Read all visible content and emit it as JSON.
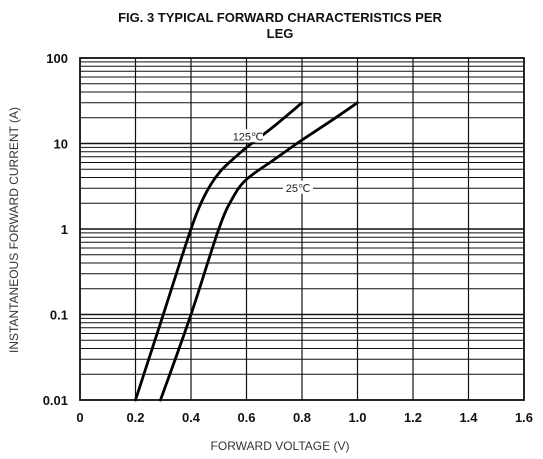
{
  "chart_data": {
    "type": "line",
    "title_lines": [
      "FIG. 3 TYPICAL FORWARD CHARACTERISTICS PER",
      "LEG"
    ],
    "xlabel": "FORWARD VOLTAGE (V)",
    "ylabel": "INSTANTANEOUS FORWARD CURRENT (A)",
    "x_scale": "linear",
    "y_scale": "log",
    "xlim": [
      0,
      1.6
    ],
    "ylim": [
      0.01,
      100
    ],
    "x_ticks": [
      0,
      0.2,
      0.4,
      0.6,
      0.8,
      1.0,
      1.2,
      1.4,
      1.6
    ],
    "x_tick_labels": [
      "0",
      "0.2",
      "0.4",
      "0.6",
      "0.8",
      "1.0",
      "1.2",
      "1.4",
      "1.6"
    ],
    "y_ticks": [
      0.01,
      0.1,
      1,
      10,
      100
    ],
    "y_tick_labels": [
      "0.01",
      "0.1",
      "1",
      "10",
      "100"
    ],
    "grid": {
      "horizontal_minor": true,
      "vertical_major": true
    },
    "series": [
      {
        "name": "125℃",
        "x": [
          0.2,
          0.3,
          0.4,
          0.45,
          0.5,
          0.55,
          0.6,
          0.7,
          0.8
        ],
        "y": [
          0.01,
          0.1,
          1,
          2.5,
          4.5,
          6.5,
          9,
          16,
          30
        ]
      },
      {
        "name": "25℃",
        "x": [
          0.29,
          0.4,
          0.5,
          0.55,
          0.6,
          0.7,
          0.8,
          0.9,
          1.0
        ],
        "y": [
          0.01,
          0.1,
          1,
          2.3,
          3.8,
          6.5,
          11,
          18,
          30
        ]
      }
    ],
    "annotations": [
      {
        "text": "125℃",
        "series": "125℃",
        "x": 0.62,
        "y": 12
      },
      {
        "text": "25℃",
        "series": "25℃",
        "x": 0.8,
        "y": 3
      }
    ]
  }
}
